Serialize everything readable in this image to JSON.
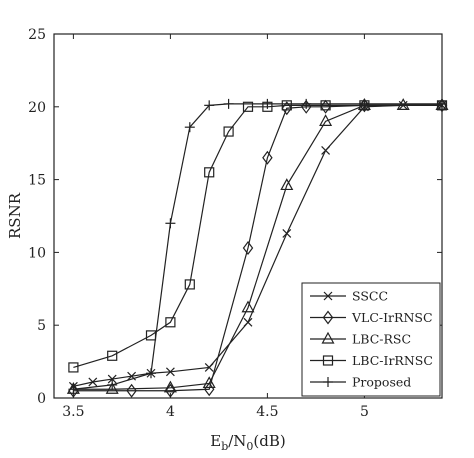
{
  "chart_data": {
    "type": "line",
    "xlabel_main": "E",
    "xlabel_sub1": "b",
    "xlabel_mid": "/N",
    "xlabel_sub2": "0",
    "xlabel_tail": "(dB)",
    "ylabel": "RSNR",
    "xlim": [
      3.4,
      5.4
    ],
    "ylim": [
      0,
      25
    ],
    "xticks": [
      3.5,
      4,
      4.5,
      5
    ],
    "xtick_labels": [
      "3.5",
      "4",
      "4.5",
      "5"
    ],
    "yticks": [
      0,
      5,
      10,
      15,
      20,
      25
    ],
    "ytick_labels": [
      "0",
      "5",
      "10",
      "15",
      "20",
      "25"
    ],
    "grid": false,
    "legend_position": "bottom-right",
    "series": [
      {
        "name": "SSCC",
        "marker": "x",
        "x": [
          3.5,
          3.6,
          3.7,
          3.8,
          3.9,
          4.0,
          4.2,
          4.4,
          4.6,
          4.8,
          5.0,
          5.2,
          5.4
        ],
        "y": [
          0.8,
          1.1,
          1.3,
          1.5,
          1.7,
          1.8,
          2.1,
          5.2,
          11.3,
          17.0,
          20.0,
          20.1,
          20.1
        ]
      },
      {
        "name": "VLC-IrRNSC",
        "marker": "diamond",
        "x": [
          3.5,
          3.8,
          4.0,
          4.2,
          4.4,
          4.5,
          4.6,
          4.7,
          4.8,
          5.0,
          5.4
        ],
        "y": [
          0.5,
          0.5,
          0.5,
          0.6,
          10.3,
          16.5,
          19.9,
          20.0,
          20.0,
          20.1,
          20.1
        ]
      },
      {
        "name": "LBC-RSC",
        "marker": "triangle",
        "x": [
          3.5,
          3.7,
          4.0,
          4.2,
          4.4,
          4.6,
          4.8,
          5.0,
          5.2,
          5.4
        ],
        "y": [
          0.6,
          0.6,
          0.7,
          1.0,
          6.2,
          14.6,
          19.0,
          20.1,
          20.1,
          20.1
        ],
        "y_note": ""
      },
      {
        "name": "LBC-IrRNSC",
        "marker": "square",
        "x": [
          3.5,
          3.7,
          3.9,
          4.0,
          4.1,
          4.2,
          4.3,
          4.4,
          4.5,
          4.6,
          4.8,
          5.0,
          5.4
        ],
        "y": [
          2.1,
          2.9,
          4.3,
          5.2,
          7.8,
          15.5,
          18.3,
          20.0,
          20.0,
          20.1,
          20.1,
          20.1,
          20.1
        ]
      },
      {
        "name": "Proposed",
        "marker": "plus",
        "x": [
          3.5,
          3.7,
          3.9,
          4.0,
          4.1,
          4.2,
          4.3,
          4.5,
          4.7,
          5.0,
          5.4
        ],
        "y": [
          0.6,
          0.9,
          1.7,
          12.0,
          18.6,
          20.1,
          20.2,
          20.2,
          20.2,
          20.2,
          20.2
        ]
      }
    ]
  }
}
